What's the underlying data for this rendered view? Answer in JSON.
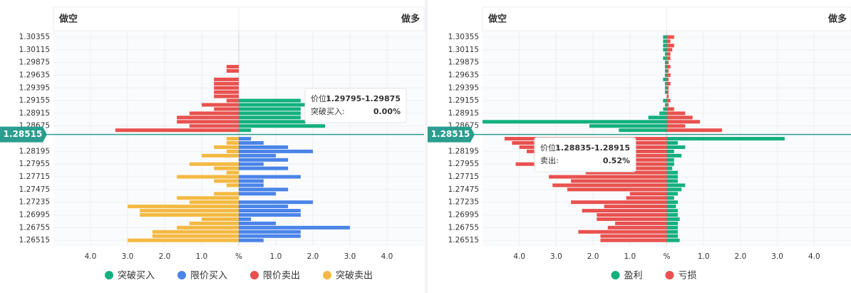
{
  "chart_data": [
    {
      "type": "bar",
      "header_left": "做空",
      "header_right": "做多",
      "current_price": "1.28515",
      "categories": [
        "1.30355",
        null,
        null,
        "1.30115",
        null,
        null,
        "1.29875",
        null,
        null,
        "1.29635",
        null,
        null,
        "1.29395",
        null,
        null,
        "1.29155",
        null,
        null,
        "1.28915",
        null,
        null,
        "1.28675",
        null,
        null,
        null,
        null,
        null,
        "1.28195",
        null,
        null,
        "1.27955",
        null,
        null,
        "1.27715",
        null,
        null,
        "1.27475",
        null,
        null,
        "1.27235",
        null,
        null,
        "1.26995",
        null,
        null,
        "1.26755",
        null,
        null,
        "1.26515"
      ],
      "series": [
        {
          "name": "突破买入",
          "color": "#12b07d",
          "values": [
            null,
            null,
            null,
            null,
            null,
            null,
            null,
            null,
            null,
            null,
            null,
            null,
            null,
            null,
            null,
            1.67,
            1.8,
            1.67,
            1.67,
            1.67,
            1.8,
            2.33,
            0.33,
            null,
            null,
            null,
            null,
            null,
            null,
            null,
            null,
            null,
            null,
            null,
            null,
            null,
            null,
            null,
            null,
            null,
            null,
            null,
            null,
            null,
            null,
            null,
            null,
            null,
            null
          ]
        },
        {
          "name": "限价买入",
          "color": "#4a84e8",
          "values": [
            null,
            null,
            null,
            null,
            null,
            null,
            null,
            null,
            null,
            null,
            null,
            null,
            null,
            null,
            null,
            null,
            null,
            null,
            null,
            null,
            null,
            null,
            null,
            null,
            0.33,
            0.67,
            1.33,
            2.0,
            1.0,
            1.33,
            0.67,
            1.33,
            null,
            1.67,
            0.67,
            0.67,
            1.33,
            1.0,
            null,
            2.0,
            1.33,
            1.67,
            1.67,
            0.33,
            1.0,
            3.0,
            1.67,
            1.67,
            0.67
          ]
        },
        {
          "name": "限价卖出",
          "color": "#e8514f",
          "values": [
            null,
            null,
            null,
            null,
            null,
            null,
            null,
            -0.33,
            -0.33,
            null,
            -0.67,
            -0.67,
            -0.67,
            -0.67,
            -0.67,
            -0.33,
            -1.0,
            -0.67,
            -1.33,
            -1.67,
            -1.67,
            -1.33,
            -3.33,
            null,
            null,
            null,
            null,
            null,
            null,
            null,
            null,
            null,
            null,
            null,
            null,
            null,
            null,
            null,
            null,
            null,
            null,
            null,
            null,
            null,
            null,
            null,
            null,
            null,
            null
          ]
        },
        {
          "name": "突破卖出",
          "color": "#f4b942",
          "values": [
            null,
            null,
            null,
            null,
            null,
            null,
            null,
            null,
            null,
            null,
            null,
            null,
            null,
            null,
            null,
            null,
            null,
            null,
            null,
            null,
            null,
            null,
            null,
            null,
            -0.33,
            -0.33,
            -0.67,
            -0.33,
            -1.0,
            null,
            -1.33,
            -0.67,
            -0.33,
            -1.67,
            -0.67,
            -0.33,
            null,
            -0.67,
            -1.67,
            -1.33,
            -3.0,
            -2.67,
            -2.67,
            -1.0,
            -1.33,
            -1.67,
            -2.33,
            -2.33,
            -3.0
          ]
        }
      ],
      "xlim": [
        -5,
        5
      ],
      "xticks": [
        {
          "value": -4,
          "label": "4.0"
        },
        {
          "value": -3,
          "label": "3.0"
        },
        {
          "value": -2,
          "label": "2.0"
        },
        {
          "value": -1,
          "label": "1.0"
        },
        {
          "value": 0,
          "label": "%"
        },
        {
          "value": 1,
          "label": "1.0"
        },
        {
          "value": 2,
          "label": "2.0"
        },
        {
          "value": 3,
          "label": "3.0"
        },
        {
          "value": 4,
          "label": "4.0"
        }
      ],
      "grid": true,
      "tooltip": {
        "rows": [
          {
            "label": "价位:",
            "value": "1.29795-1.29875"
          },
          {
            "label": "突破买入:",
            "value": "0.00%"
          }
        ]
      }
    },
    {
      "type": "bar",
      "header_left": "做空",
      "header_right": "做多",
      "current_price": "1.28515",
      "categories": [
        "1.30355",
        null,
        null,
        "1.30115",
        null,
        null,
        "1.29875",
        null,
        null,
        "1.29635",
        null,
        null,
        "1.29395",
        null,
        null,
        "1.29155",
        null,
        null,
        "1.28915",
        null,
        null,
        "1.28675",
        null,
        null,
        null,
        null,
        null,
        "1.28195",
        null,
        null,
        "1.27955",
        null,
        null,
        "1.27715",
        null,
        null,
        "1.27475",
        null,
        null,
        "1.27235",
        null,
        null,
        "1.26995",
        null,
        null,
        "1.26755",
        null,
        null,
        "1.26515"
      ],
      "series": [
        {
          "name": "盈利",
          "color": "#12b07d",
          "values": [
            -0.1,
            -0.1,
            -0.1,
            -0.1,
            -0.05,
            -0.1,
            -0.05,
            -0.05,
            -0.05,
            -0.05,
            -0.1,
            -0.05,
            -0.05,
            -0.05,
            null,
            -0.1,
            -0.05,
            -0.1,
            -0.2,
            -0.5,
            -5.0,
            -2.1,
            -1.3,
            null,
            3.2,
            0.3,
            0.5,
            0.2,
            0.4,
            0.2,
            0.2,
            0.15,
            0.3,
            0.3,
            0.3,
            0.5,
            0.4,
            0.3,
            0.2,
            0.3,
            0.25,
            0.3,
            0.3,
            0.35,
            0.3,
            0.3,
            0.3,
            0.3,
            0.35
          ]
        },
        {
          "name": "亏损",
          "color": "#e8514f",
          "values": [
            0.2,
            0.1,
            0.2,
            0.15,
            0.1,
            0.1,
            0.05,
            0.1,
            0.05,
            0.1,
            0.05,
            0.1,
            0.05,
            0.05,
            0.05,
            0.1,
            0.05,
            0.2,
            0.5,
            0.7,
            0.9,
            0.5,
            1.5,
            null,
            -4.4,
            -4.2,
            -4.0,
            -3.8,
            -3.6,
            -3.4,
            -4.1,
            -1.4,
            -2.2,
            -3.2,
            -2.6,
            -3.1,
            -2.7,
            -1.0,
            -1.1,
            -2.6,
            -1.7,
            -2.3,
            -1.9,
            -1.9,
            -1.4,
            -1.6,
            -2.4,
            -1.8,
            -1.8
          ]
        }
      ],
      "xlim": [
        -5,
        5
      ],
      "xticks": [
        {
          "value": -4,
          "label": "4.0"
        },
        {
          "value": -3,
          "label": "3.0"
        },
        {
          "value": -2,
          "label": "2.0"
        },
        {
          "value": -1,
          "label": "1.0"
        },
        {
          "value": 0,
          "label": "%"
        },
        {
          "value": 1,
          "label": "1.0"
        },
        {
          "value": 2,
          "label": "2.0"
        },
        {
          "value": 3,
          "label": "3.0"
        },
        {
          "value": 4,
          "label": "4.0"
        }
      ],
      "grid": true,
      "tooltip": {
        "rows": [
          {
            "label": "价位:",
            "value": "1.28835-1.28915"
          },
          {
            "label": "卖出:",
            "value": "0.52%"
          }
        ]
      }
    }
  ]
}
